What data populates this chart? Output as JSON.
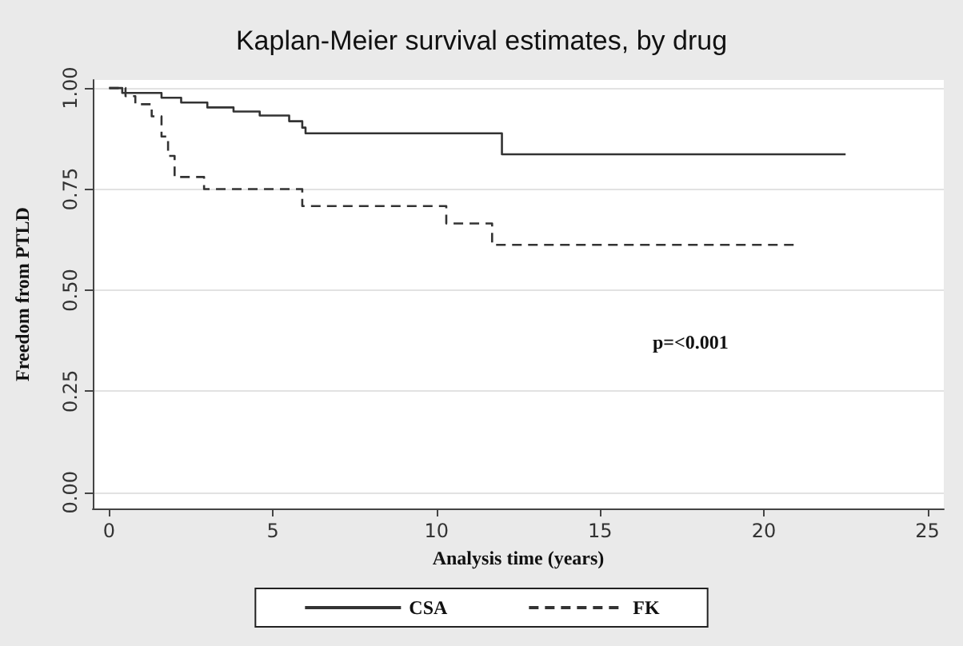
{
  "chart_data": {
    "type": "step",
    "title": "Kaplan-Meier survival estimates, by drug",
    "xlabel": "Analysis time (years)",
    "ylabel": "Freedom from PTLD",
    "annotations": [
      "p=<0.001"
    ],
    "series": [
      {
        "name": "CSA",
        "color": "#333333",
        "line_style": "solid",
        "x": [
          0,
          0.4,
          1.6,
          2.2,
          3.0,
          3.8,
          4.6,
          5.5,
          5.9,
          6.0,
          12.0,
          22.5
        ],
        "values": [
          1.0,
          0.988,
          0.976,
          0.964,
          0.952,
          0.942,
          0.932,
          0.918,
          0.902,
          0.888,
          0.836,
          0.836
        ]
      },
      {
        "name": "FK",
        "color": "#333333",
        "line_style": "dashed",
        "x": [
          0,
          0.5,
          0.8,
          1.3,
          1.6,
          1.8,
          2.0,
          2.9,
          5.9,
          10.3,
          11.7,
          21.0
        ],
        "values": [
          1.0,
          0.98,
          0.96,
          0.93,
          0.88,
          0.832,
          0.78,
          0.75,
          0.708,
          0.665,
          0.612,
          0.612
        ]
      }
    ],
    "xlim": [
      -0.5,
      25.5
    ],
    "xticks": [
      0,
      5,
      10,
      15,
      20,
      25
    ],
    "ylim": [
      -0.04,
      1.02
    ],
    "yticks": [
      {
        "value": 0,
        "label": "0.00"
      },
      {
        "value": 0.25,
        "label": "0.25"
      },
      {
        "value": 0.5,
        "label": "0.50"
      },
      {
        "value": 0.75,
        "label": "0.75"
      },
      {
        "value": 1,
        "label": "1.00"
      }
    ],
    "grid": "y",
    "legend": "bottom",
    "marker": "none"
  }
}
